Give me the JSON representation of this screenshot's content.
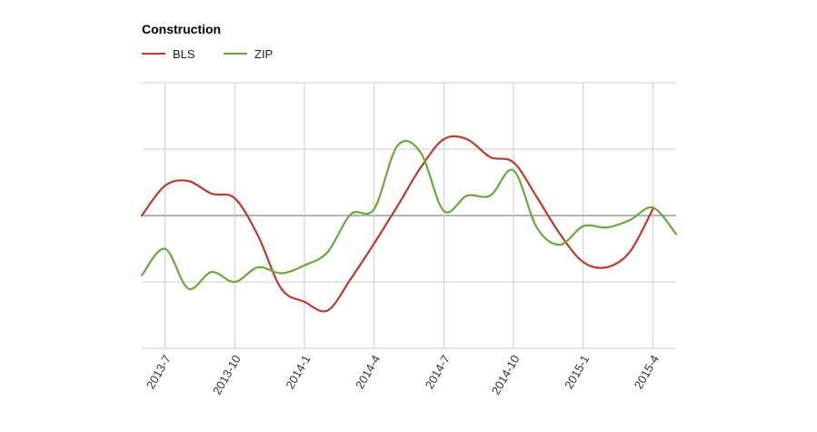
{
  "chart_data": {
    "type": "line",
    "title": "Construction",
    "xlabel": "",
    "ylabel": "",
    "x_tick_labels": [
      "2013-7",
      "2013-10",
      "2014-1",
      "2014-4",
      "2014-7",
      "2014-10",
      "2015-1",
      "2015-4"
    ],
    "x_range": [
      "2013-6",
      "2015-5"
    ],
    "y_range": [
      -2,
      2
    ],
    "y_axis_labels": "none",
    "grid": true,
    "legend_position": "top-left",
    "series": [
      {
        "name": "BLS",
        "color": "#c0392b",
        "points": [
          [
            "2013-6",
            0.0
          ],
          [
            "2013-7",
            0.45
          ],
          [
            "2013-8",
            0.52
          ],
          [
            "2013-9",
            0.33
          ],
          [
            "2013-10",
            0.26
          ],
          [
            "2013-11",
            -0.3
          ],
          [
            "2013-12",
            -1.1
          ],
          [
            "2014-1",
            -1.3
          ],
          [
            "2014-2",
            -1.43
          ],
          [
            "2014-3",
            -0.95
          ],
          [
            "2014-4",
            -0.42
          ],
          [
            "2014-5",
            0.14
          ],
          [
            "2014-6",
            0.72
          ],
          [
            "2014-7",
            1.15
          ],
          [
            "2014-8",
            1.15
          ],
          [
            "2014-9",
            0.88
          ],
          [
            "2014-10",
            0.8
          ],
          [
            "2014-11",
            0.28
          ],
          [
            "2014-12",
            -0.28
          ],
          [
            "2015-1",
            -0.7
          ],
          [
            "2015-2",
            -0.78
          ],
          [
            "2015-3",
            -0.55
          ],
          [
            "2015-4",
            0.1
          ]
        ]
      },
      {
        "name": "ZIP",
        "color": "#6aaa3a",
        "points": [
          [
            "2013-6",
            -0.9
          ],
          [
            "2013-7",
            -0.5
          ],
          [
            "2013-8",
            -1.1
          ],
          [
            "2013-9",
            -0.85
          ],
          [
            "2013-10",
            -1.0
          ],
          [
            "2013-11",
            -0.78
          ],
          [
            "2013-12",
            -0.87
          ],
          [
            "2014-1",
            -0.75
          ],
          [
            "2014-2",
            -0.55
          ],
          [
            "2014-3",
            0.02
          ],
          [
            "2014-4",
            0.1
          ],
          [
            "2014-5",
            1.05
          ],
          [
            "2014-6",
            0.95
          ],
          [
            "2014-7",
            0.07
          ],
          [
            "2014-8",
            0.3
          ],
          [
            "2014-9",
            0.3
          ],
          [
            "2014-10",
            0.68
          ],
          [
            "2014-11",
            -0.18
          ],
          [
            "2014-12",
            -0.44
          ],
          [
            "2015-1",
            -0.16
          ],
          [
            "2015-2",
            -0.18
          ],
          [
            "2015-3",
            -0.07
          ],
          [
            "2015-4",
            0.12
          ],
          [
            "2015-5",
            -0.28
          ]
        ]
      }
    ]
  }
}
